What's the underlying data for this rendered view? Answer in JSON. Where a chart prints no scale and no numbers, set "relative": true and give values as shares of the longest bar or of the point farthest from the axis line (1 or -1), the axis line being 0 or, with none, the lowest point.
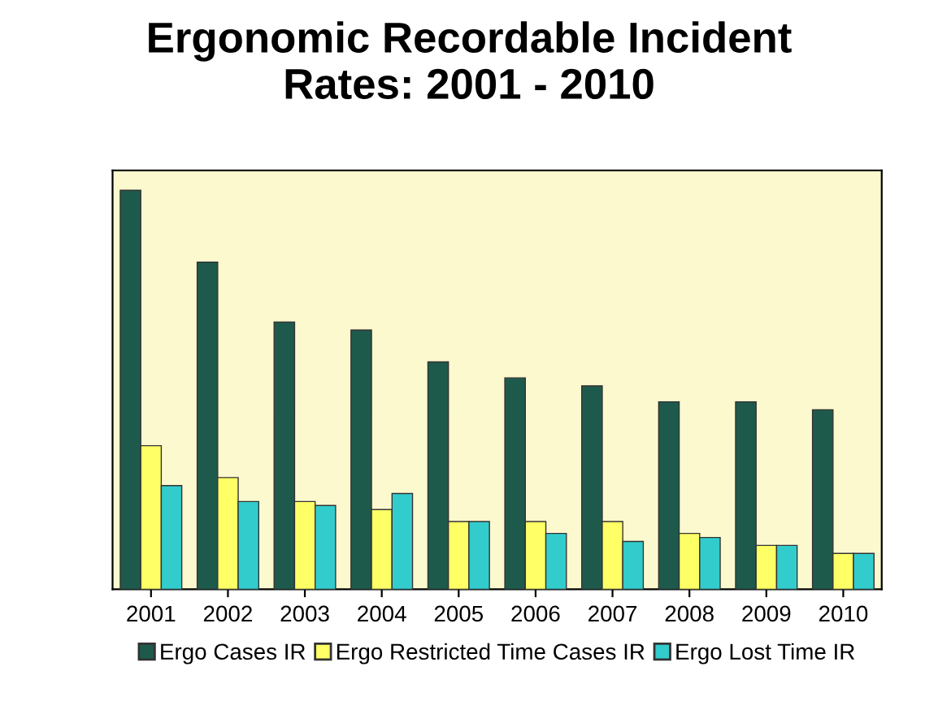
{
  "chart_data": {
    "type": "bar",
    "title": "Ergonomic Recordable Incident\nRates: 2001 - 2010",
    "categories": [
      "2001",
      "2002",
      "2003",
      "2004",
      "2005",
      "2006",
      "2007",
      "2008",
      "2009",
      "2010"
    ],
    "relative": true,
    "series": [
      {
        "name": "Ergo Cases IR",
        "color": "#1e5a4c",
        "values": [
          1,
          0.82,
          0.67,
          0.65,
          0.57,
          0.53,
          0.51,
          0.47,
          0.47,
          0.45
        ]
      },
      {
        "name": "Ergo Restricted Time Cases IR",
        "color": "#ffff66",
        "values": [
          0.36,
          0.28,
          0.22,
          0.2,
          0.17,
          0.17,
          0.17,
          0.14,
          0.11,
          0.09
        ]
      },
      {
        "name": "Ergo Lost Time IR",
        "color": "#33cccc",
        "values": [
          0.26,
          0.22,
          0.21,
          0.24,
          0.17,
          0.14,
          0.12,
          0.13,
          0.11,
          0.09
        ]
      }
    ],
    "legend": "bottom"
  }
}
